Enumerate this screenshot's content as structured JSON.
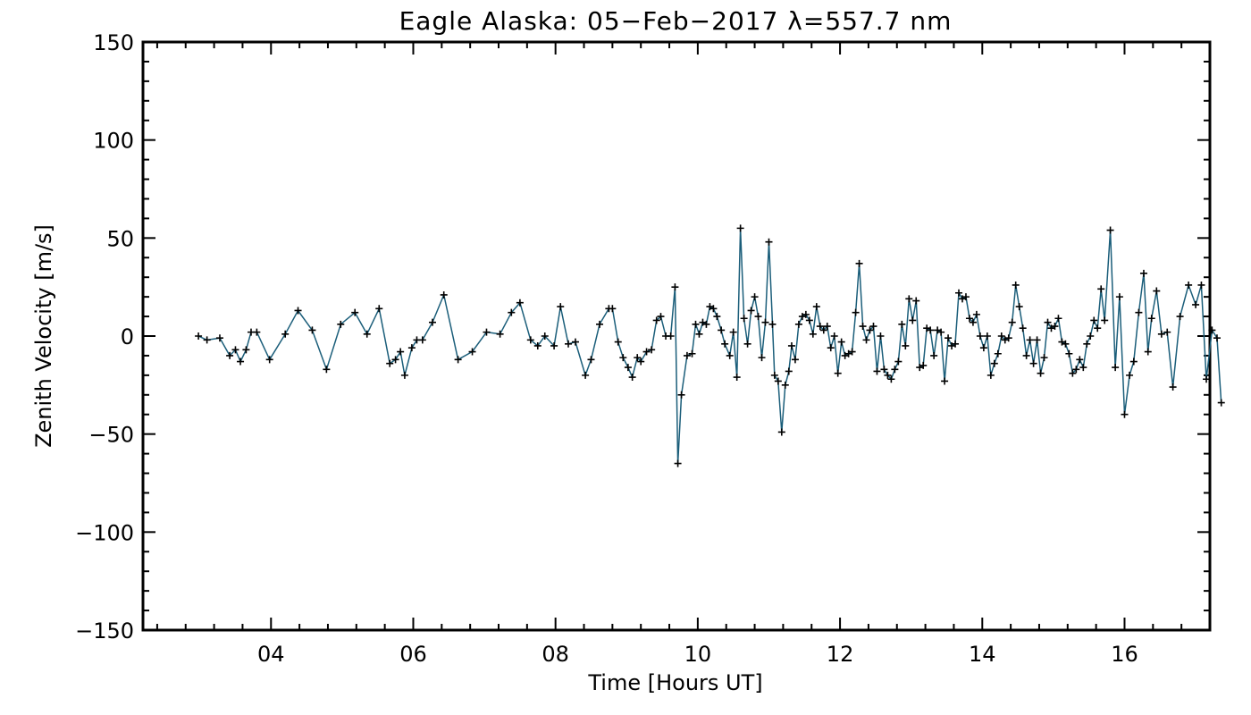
{
  "chart_data": {
    "type": "line",
    "title": "Eagle Alaska: 05−Feb−2017 λ=557.7 nm",
    "xlabel": "Time [Hours UT]",
    "ylabel": "Zenith Velocity [m/s]",
    "xlim": [
      2.2,
      17.2
    ],
    "ylim": [
      -150,
      150
    ],
    "x_ticks": [
      {
        "value": 4,
        "label": "04"
      },
      {
        "value": 6,
        "label": "06"
      },
      {
        "value": 8,
        "label": "08"
      },
      {
        "value": 10,
        "label": "10"
      },
      {
        "value": 12,
        "label": "12"
      },
      {
        "value": 14,
        "label": "14"
      },
      {
        "value": 16,
        "label": "16"
      }
    ],
    "y_ticks": [
      {
        "value": 150,
        "label": "150"
      },
      {
        "value": 100,
        "label": "100"
      },
      {
        "value": 50,
        "label": "50"
      },
      {
        "value": 0,
        "label": "0"
      },
      {
        "value": -50,
        "label": "−50"
      },
      {
        "value": -100,
        "label": "−100"
      },
      {
        "value": -150,
        "label": "−150"
      }
    ],
    "x_minor_step": 0.4,
    "y_minor_step": 10,
    "grid": false,
    "line_color": "#1b5e7a",
    "marker_color": "#000000",
    "marker": "plus",
    "series": [
      {
        "points": [
          [
            2.98,
            0
          ],
          [
            3.1,
            -2
          ],
          [
            3.28,
            -1
          ],
          [
            3.42,
            -10
          ],
          [
            3.5,
            -7
          ],
          [
            3.57,
            -13
          ],
          [
            3.65,
            -7
          ],
          [
            3.72,
            2
          ],
          [
            3.8,
            2
          ],
          [
            3.98,
            -12
          ],
          [
            4.2,
            1
          ],
          [
            4.38,
            13
          ],
          [
            4.58,
            3
          ],
          [
            4.78,
            -17
          ],
          [
            4.98,
            6
          ],
          [
            5.18,
            12
          ],
          [
            5.35,
            1
          ],
          [
            5.52,
            14
          ],
          [
            5.67,
            -14
          ],
          [
            5.75,
            -12
          ],
          [
            5.82,
            -8
          ],
          [
            5.88,
            -20
          ],
          [
            5.98,
            -6
          ],
          [
            6.05,
            -2
          ],
          [
            6.13,
            -2
          ],
          [
            6.27,
            7
          ],
          [
            6.43,
            21
          ],
          [
            6.63,
            -12
          ],
          [
            6.83,
            -8
          ],
          [
            7.03,
            2
          ],
          [
            7.22,
            1
          ],
          [
            7.38,
            12
          ],
          [
            7.5,
            17
          ],
          [
            7.65,
            -2
          ],
          [
            7.75,
            -5
          ],
          [
            7.85,
            0
          ],
          [
            7.98,
            -5
          ],
          [
            8.07,
            15
          ],
          [
            8.18,
            -4
          ],
          [
            8.28,
            -3
          ],
          [
            8.42,
            -20
          ],
          [
            8.5,
            -12
          ],
          [
            8.62,
            6
          ],
          [
            8.75,
            14
          ],
          [
            8.8,
            14
          ],
          [
            8.88,
            -3
          ],
          [
            8.95,
            -11
          ],
          [
            9.02,
            -16
          ],
          [
            9.08,
            -21
          ],
          [
            9.15,
            -11
          ],
          [
            9.2,
            -13
          ],
          [
            9.28,
            -8
          ],
          [
            9.35,
            -7
          ],
          [
            9.42,
            8
          ],
          [
            9.48,
            10
          ],
          [
            9.55,
            0
          ],
          [
            9.62,
            0
          ],
          [
            9.68,
            25
          ],
          [
            9.72,
            -65
          ],
          [
            9.77,
            -30
          ],
          [
            9.85,
            -10
          ],
          [
            9.92,
            -9
          ],
          [
            9.97,
            6
          ],
          [
            10.02,
            1
          ],
          [
            10.07,
            7
          ],
          [
            10.12,
            6
          ],
          [
            10.17,
            15
          ],
          [
            10.22,
            14
          ],
          [
            10.27,
            10
          ],
          [
            10.33,
            3
          ],
          [
            10.38,
            -4
          ],
          [
            10.45,
            -10
          ],
          [
            10.5,
            2
          ],
          [
            10.55,
            -21
          ],
          [
            10.6,
            55
          ],
          [
            10.65,
            9
          ],
          [
            10.7,
            -4
          ],
          [
            10.75,
            13
          ],
          [
            10.8,
            20
          ],
          [
            10.85,
            10
          ],
          [
            10.9,
            -11
          ],
          [
            10.95,
            7
          ],
          [
            11.0,
            48
          ],
          [
            11.05,
            6
          ],
          [
            11.08,
            -20
          ],
          [
            11.13,
            -23
          ],
          [
            11.18,
            -49
          ],
          [
            11.23,
            -25
          ],
          [
            11.28,
            -18
          ],
          [
            11.32,
            -5
          ],
          [
            11.37,
            -12
          ],
          [
            11.42,
            6
          ],
          [
            11.47,
            10
          ],
          [
            11.52,
            11
          ],
          [
            11.57,
            8
          ],
          [
            11.62,
            1
          ],
          [
            11.67,
            15
          ],
          [
            11.72,
            5
          ],
          [
            11.77,
            3
          ],
          [
            11.82,
            5
          ],
          [
            11.87,
            -6
          ],
          [
            11.92,
            0
          ],
          [
            11.97,
            -19
          ],
          [
            12.02,
            -3
          ],
          [
            12.07,
            -10
          ],
          [
            12.12,
            -9
          ],
          [
            12.17,
            -8
          ],
          [
            12.22,
            12
          ],
          [
            12.27,
            37
          ],
          [
            12.32,
            5
          ],
          [
            12.37,
            -2
          ],
          [
            12.42,
            3
          ],
          [
            12.47,
            5
          ],
          [
            12.52,
            -18
          ],
          [
            12.57,
            0
          ],
          [
            12.62,
            -17
          ],
          [
            12.67,
            -20
          ],
          [
            12.72,
            -22
          ],
          [
            12.77,
            -17
          ],
          [
            12.82,
            -13
          ],
          [
            12.87,
            6
          ],
          [
            12.92,
            -5
          ],
          [
            12.97,
            19
          ],
          [
            13.02,
            8
          ],
          [
            13.07,
            18
          ],
          [
            13.12,
            -16
          ],
          [
            13.17,
            -15
          ],
          [
            13.22,
            4
          ],
          [
            13.27,
            3
          ],
          [
            13.32,
            -10
          ],
          [
            13.37,
            3
          ],
          [
            13.42,
            2
          ],
          [
            13.47,
            -23
          ],
          [
            13.52,
            -1
          ],
          [
            13.57,
            -5
          ],
          [
            13.62,
            -4
          ],
          [
            13.67,
            22
          ],
          [
            13.72,
            19
          ],
          [
            13.77,
            20
          ],
          [
            13.82,
            9
          ],
          [
            13.87,
            7
          ],
          [
            13.92,
            11
          ],
          [
            13.97,
            0
          ],
          [
            14.02,
            -6
          ],
          [
            14.07,
            0
          ],
          [
            14.12,
            -20
          ],
          [
            14.17,
            -14
          ],
          [
            14.22,
            -9
          ],
          [
            14.27,
            0
          ],
          [
            14.32,
            -2
          ],
          [
            14.37,
            -1
          ],
          [
            14.42,
            7
          ],
          [
            14.47,
            26
          ],
          [
            14.52,
            15
          ],
          [
            14.57,
            4
          ],
          [
            14.62,
            -10
          ],
          [
            14.67,
            -2
          ],
          [
            14.72,
            -14
          ],
          [
            14.77,
            -2
          ],
          [
            14.82,
            -19
          ],
          [
            14.87,
            -11
          ],
          [
            14.92,
            7
          ],
          [
            14.97,
            4
          ],
          [
            15.02,
            5
          ],
          [
            15.07,
            9
          ],
          [
            15.12,
            -3
          ],
          [
            15.17,
            -4
          ],
          [
            15.22,
            -9
          ],
          [
            15.27,
            -19
          ],
          [
            15.32,
            -17
          ],
          [
            15.37,
            -12
          ],
          [
            15.42,
            -16
          ],
          [
            15.47,
            -4
          ],
          [
            15.52,
            0
          ],
          [
            15.57,
            8
          ],
          [
            15.62,
            4
          ],
          [
            15.67,
            24
          ],
          [
            15.72,
            8
          ],
          [
            15.8,
            54
          ],
          [
            15.87,
            -16
          ],
          [
            15.93,
            20
          ],
          [
            16.0,
            -40
          ],
          [
            16.07,
            -20
          ],
          [
            16.13,
            -13
          ],
          [
            16.2,
            12
          ],
          [
            16.27,
            32
          ],
          [
            16.33,
            -8
          ],
          [
            16.38,
            9
          ],
          [
            16.45,
            23
          ],
          [
            16.52,
            1
          ],
          [
            16.6,
            2
          ],
          [
            16.68,
            -26
          ],
          [
            16.78,
            10
          ],
          [
            16.9,
            26
          ],
          [
            17.0,
            16
          ],
          [
            17.08,
            26
          ],
          [
            17.15,
            -22
          ],
          [
            17.23,
            3
          ],
          [
            17.3,
            -1
          ],
          [
            17.36,
            -34
          ]
        ]
      }
    ]
  }
}
